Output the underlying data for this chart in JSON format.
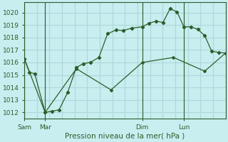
{
  "title": "Pression niveau de la mer( hPa )",
  "bg_color": "#c8eef0",
  "grid_color": "#b0d8da",
  "line_color": "#2a5e2a",
  "ylim": [
    1011.5,
    1020.8
  ],
  "yticks": [
    1012,
    1013,
    1014,
    1015,
    1016,
    1017,
    1018,
    1019,
    1020
  ],
  "day_labels": [
    "Sam",
    "Mar",
    "Dim",
    "Lun"
  ],
  "day_positions": [
    0,
    12,
    68,
    92
  ],
  "total_points": 116,
  "series1_x": [
    0,
    3,
    6,
    12,
    16,
    20,
    25,
    30,
    34,
    38,
    43,
    48,
    53,
    57,
    62,
    68,
    72,
    76,
    80,
    84,
    88,
    92,
    96,
    100,
    104,
    108,
    112,
    116
  ],
  "series1_y": [
    1016.3,
    1015.2,
    1015.1,
    1012.0,
    1012.1,
    1012.2,
    1013.6,
    1015.6,
    1015.9,
    1016.0,
    1016.4,
    1018.3,
    1018.6,
    1018.55,
    1018.75,
    1018.85,
    1019.15,
    1019.3,
    1019.2,
    1020.3,
    1020.05,
    1018.85,
    1018.85,
    1018.65,
    1018.15,
    1016.9,
    1016.8,
    1016.75
  ],
  "series2_x": [
    0,
    12,
    30,
    50,
    68,
    86,
    104,
    116
  ],
  "series2_y": [
    1016.3,
    1012.0,
    1015.5,
    1013.8,
    1016.0,
    1016.4,
    1015.3,
    1016.75
  ],
  "vline_positions": [
    0,
    12,
    68,
    92
  ]
}
